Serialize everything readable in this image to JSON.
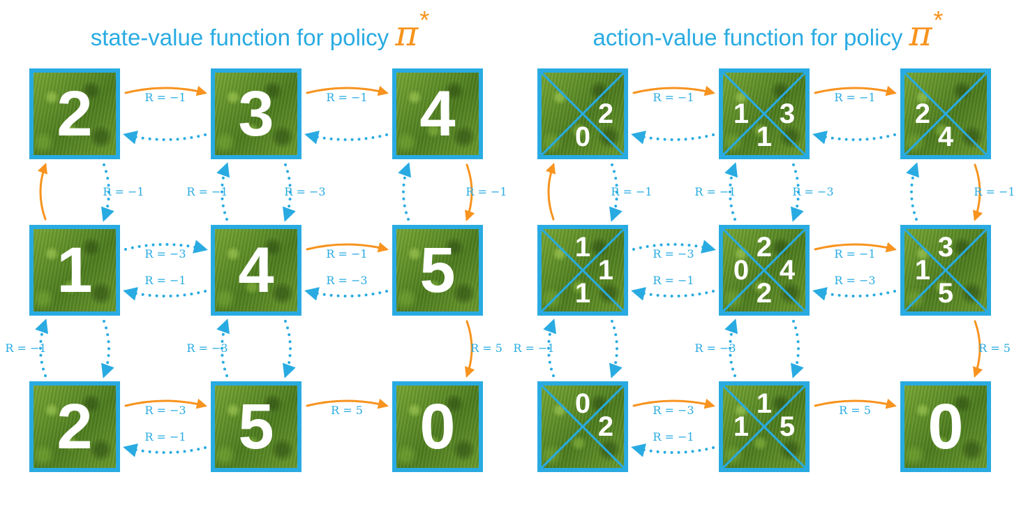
{
  "titles": [
    {
      "text": "state-value function for policy ",
      "symbol": "π",
      "star": "*"
    },
    {
      "text": "action-value function for policy ",
      "symbol": "π",
      "star": "*"
    }
  ],
  "colors": {
    "optimal": "#f7931e",
    "other": "#29abe2",
    "border": "#29abe2",
    "text": "#ffffff"
  },
  "reward_prefix": "R = ",
  "state_values": [
    [
      2,
      3,
      4
    ],
    [
      1,
      4,
      5
    ],
    [
      2,
      5,
      0
    ]
  ],
  "action_values": [
    [
      {
        "n": "",
        "e": "2",
        "s": "0",
        "w": ""
      },
      {
        "n": "",
        "e": "3",
        "s": "1",
        "w": "1"
      },
      {
        "n": "",
        "e": "",
        "s": "4",
        "w": "2"
      }
    ],
    [
      {
        "n": "1",
        "e": "1",
        "s": "1",
        "w": ""
      },
      {
        "n": "2",
        "e": "4",
        "s": "2",
        "w": "0"
      },
      {
        "n": "3",
        "e": "",
        "s": "5",
        "w": "1"
      }
    ],
    [
      {
        "n": "0",
        "e": "2",
        "s": "",
        "w": ""
      },
      {
        "n": "1",
        "e": "5",
        "s": "",
        "w": "1"
      },
      {
        "terminal": "0"
      }
    ]
  ],
  "transitions": [
    {
      "from": [
        0,
        0
      ],
      "to": [
        0,
        1
      ],
      "reward": "−1",
      "optimal": true
    },
    {
      "from": [
        0,
        1
      ],
      "to": [
        0,
        0
      ],
      "reward": "",
      "optimal": false
    },
    {
      "from": [
        0,
        1
      ],
      "to": [
        0,
        2
      ],
      "reward": "−1",
      "optimal": true
    },
    {
      "from": [
        0,
        2
      ],
      "to": [
        0,
        1
      ],
      "reward": "",
      "optimal": false
    },
    {
      "from": [
        1,
        0
      ],
      "to": [
        1,
        1
      ],
      "reward": "−3",
      "optimal": false
    },
    {
      "from": [
        1,
        1
      ],
      "to": [
        1,
        0
      ],
      "reward": "−1",
      "optimal": false
    },
    {
      "from": [
        1,
        1
      ],
      "to": [
        1,
        2
      ],
      "reward": "−1",
      "optimal": true
    },
    {
      "from": [
        1,
        2
      ],
      "to": [
        1,
        1
      ],
      "reward": "−3",
      "optimal": false
    },
    {
      "from": [
        2,
        0
      ],
      "to": [
        2,
        1
      ],
      "reward": "−3",
      "optimal": true
    },
    {
      "from": [
        2,
        1
      ],
      "to": [
        2,
        0
      ],
      "reward": "−1",
      "optimal": false
    },
    {
      "from": [
        2,
        1
      ],
      "to": [
        2,
        2
      ],
      "reward": "5",
      "optimal": true
    },
    {
      "from": [
        1,
        0
      ],
      "to": [
        0,
        0
      ],
      "reward": "",
      "optimal": true
    },
    {
      "from": [
        0,
        0
      ],
      "to": [
        1,
        0
      ],
      "reward": "−1",
      "optimal": false
    },
    {
      "from": [
        1,
        1
      ],
      "to": [
        0,
        1
      ],
      "reward": "−1",
      "optimal": false
    },
    {
      "from": [
        0,
        1
      ],
      "to": [
        1,
        1
      ],
      "reward": "−3",
      "optimal": false
    },
    {
      "from": [
        1,
        2
      ],
      "to": [
        0,
        2
      ],
      "reward": "",
      "optimal": false
    },
    {
      "from": [
        0,
        2
      ],
      "to": [
        1,
        2
      ],
      "reward": "−1",
      "optimal": true
    },
    {
      "from": [
        2,
        0
      ],
      "to": [
        1,
        0
      ],
      "reward": "−1",
      "optimal": false
    },
    {
      "from": [
        1,
        0
      ],
      "to": [
        2,
        0
      ],
      "reward": "",
      "optimal": false
    },
    {
      "from": [
        2,
        1
      ],
      "to": [
        1,
        1
      ],
      "reward": "−3",
      "optimal": false
    },
    {
      "from": [
        1,
        1
      ],
      "to": [
        2,
        1
      ],
      "reward": "",
      "optimal": false
    },
    {
      "from": [
        1,
        2
      ],
      "to": [
        2,
        2
      ],
      "reward": "5",
      "optimal": true
    }
  ]
}
